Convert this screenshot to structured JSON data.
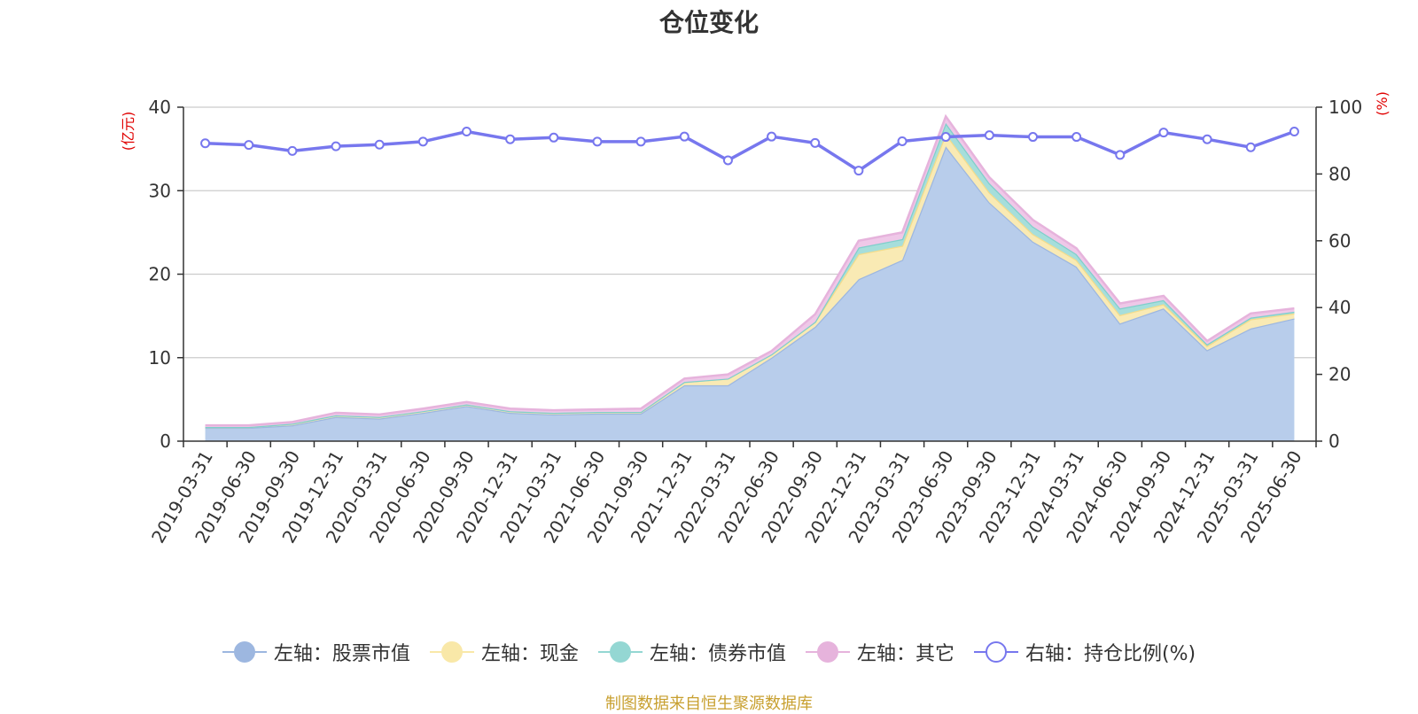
{
  "title": "仓位变化",
  "source_note": "制图数据来自恒生聚源数据库",
  "units": {
    "left": "(亿元)",
    "right": "(%)"
  },
  "legend": [
    {
      "label": "左轴：股票市值",
      "color": "#9db7e0",
      "marker": "filled"
    },
    {
      "label": "左轴：现金",
      "color": "#f9e8a8",
      "marker": "filled"
    },
    {
      "label": "左轴：债券市值",
      "color": "#94d7d3",
      "marker": "filled"
    },
    {
      "label": "左轴：其它",
      "color": "#e6b3dc",
      "marker": "filled"
    },
    {
      "label": "右轴：持仓比例(%)",
      "color": "#7777ee",
      "marker": "hollow"
    }
  ],
  "chart_data": {
    "type": "area",
    "title": "仓位变化",
    "categories": [
      "2019-03-31",
      "2019-06-30",
      "2019-09-30",
      "2019-12-31",
      "2020-03-31",
      "2020-06-30",
      "2020-09-30",
      "2020-12-31",
      "2021-03-31",
      "2021-06-30",
      "2021-09-30",
      "2021-12-31",
      "2022-03-31",
      "2022-06-30",
      "2022-09-30",
      "2022-12-31",
      "2023-03-31",
      "2023-06-30",
      "2023-09-30",
      "2023-12-31",
      "2024-03-31",
      "2024-06-30",
      "2024-09-30",
      "2024-12-31",
      "2025-03-31",
      "2025-06-30"
    ],
    "y_left_range": [
      0,
      40
    ],
    "y_left_ticks": [
      0,
      10,
      20,
      30,
      40
    ],
    "y_right_range": [
      0,
      100
    ],
    "y_right_ticks": [
      0,
      20,
      40,
      60,
      80,
      100
    ],
    "stacked": true,
    "grid": true,
    "legend_position": "bottom",
    "series": [
      {
        "name": "左轴：股票市值",
        "axis": "left",
        "color": "#9db7e0",
        "fill": "#b8cdeb",
        "values": [
          1.6,
          1.6,
          1.9,
          2.9,
          2.7,
          3.4,
          4.2,
          3.4,
          3.2,
          3.3,
          3.3,
          6.7,
          6.7,
          10.0,
          13.7,
          19.4,
          21.7,
          35.3,
          28.6,
          23.9,
          20.9,
          14.1,
          15.9,
          10.9,
          13.5,
          14.7
        ]
      },
      {
        "name": "左轴：现金",
        "axis": "left",
        "color": "#f3dc8c",
        "fill": "#f9eab4",
        "values": [
          0.1,
          0.1,
          0.2,
          0.2,
          0.2,
          0.2,
          0.2,
          0.2,
          0.2,
          0.2,
          0.2,
          0.4,
          0.8,
          0.4,
          0.6,
          3.0,
          1.7,
          1.5,
          1.2,
          0.9,
          0.8,
          1.0,
          0.5,
          0.5,
          1.1,
          0.6
        ]
      },
      {
        "name": "左轴：债券市值",
        "axis": "left",
        "color": "#7fcfcb",
        "fill": "#a6dedb",
        "values": [
          0.0,
          0.0,
          0.0,
          0.0,
          0.0,
          0.0,
          0.0,
          0.0,
          0.0,
          0.0,
          0.0,
          0.0,
          0.0,
          0.0,
          0.0,
          0.8,
          0.8,
          1.3,
          1.1,
          0.9,
          0.7,
          0.8,
          0.5,
          0.2,
          0.2,
          0.2
        ]
      },
      {
        "name": "左轴：其它",
        "axis": "left",
        "color": "#e6b3dc",
        "fill": "#efc8e8",
        "values": [
          0.2,
          0.2,
          0.2,
          0.3,
          0.3,
          0.3,
          0.3,
          0.3,
          0.3,
          0.3,
          0.4,
          0.4,
          0.5,
          0.4,
          0.9,
          0.8,
          0.8,
          0.8,
          0.7,
          0.8,
          0.7,
          0.6,
          0.5,
          0.4,
          0.5,
          0.4
        ]
      },
      {
        "name": "右轴：持仓比例(%)",
        "axis": "right",
        "type": "line",
        "color": "#7777ee",
        "values": [
          89.2,
          88.7,
          86.9,
          88.3,
          88.8,
          89.7,
          92.7,
          90.4,
          90.9,
          89.7,
          89.7,
          91.2,
          84.1,
          91.2,
          89.3,
          81.0,
          89.8,
          91.1,
          91.6,
          91.1,
          91.1,
          85.7,
          92.4,
          90.4,
          88.0,
          92.7
        ]
      }
    ]
  }
}
